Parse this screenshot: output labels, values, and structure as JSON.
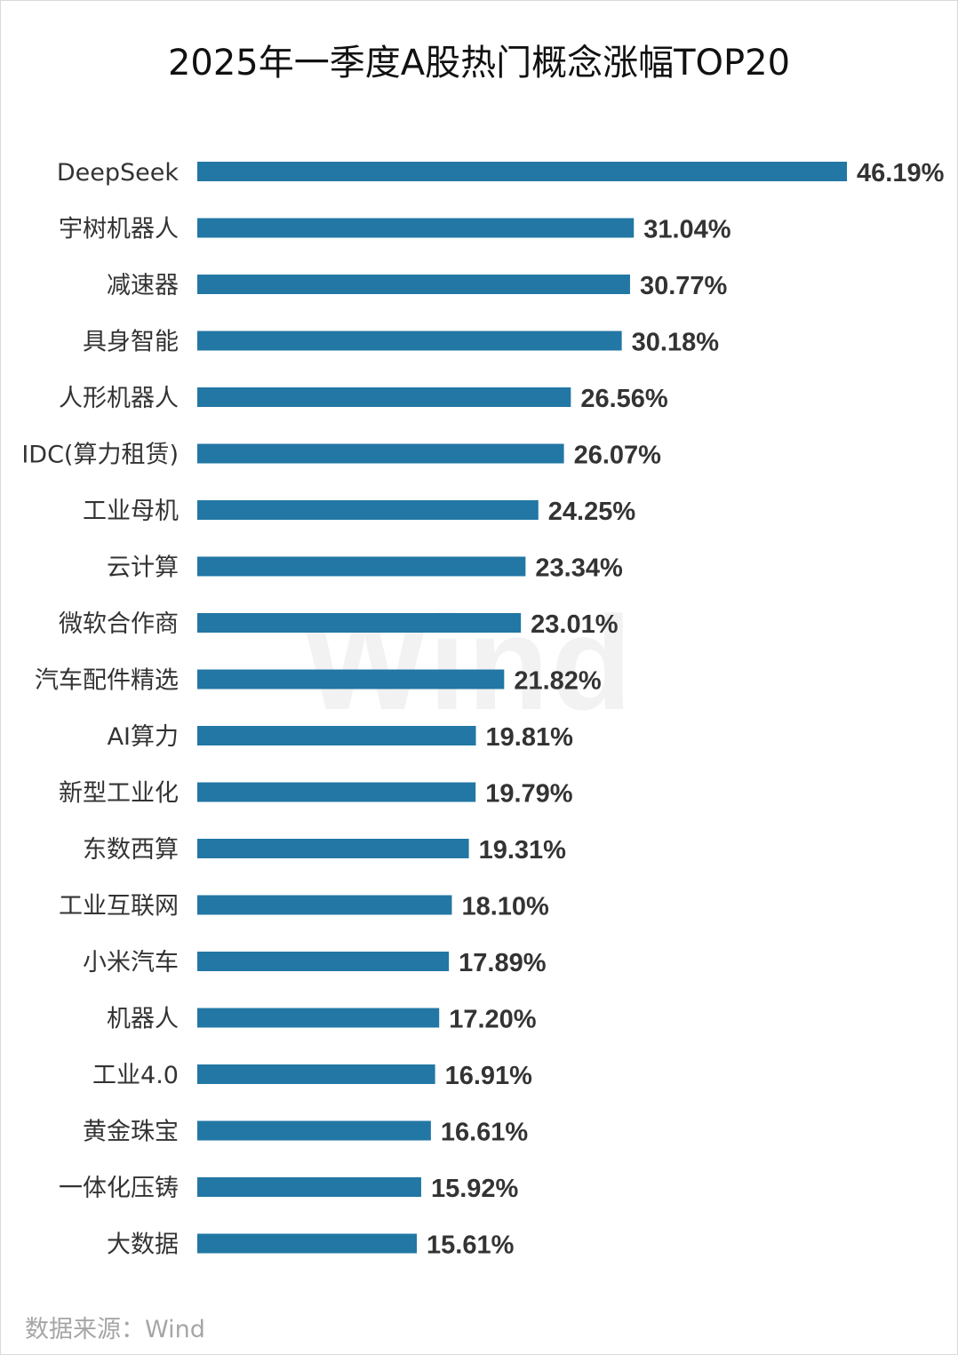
{
  "title": "2025年一季度A股热门概念涨幅TOP20",
  "watermark": "Wind",
  "source": "数据来源：Wind",
  "colors": {
    "bar": "#2277a4",
    "label": "#333333",
    "value": "#333333"
  },
  "chart_data": {
    "type": "bar",
    "orientation": "horizontal",
    "title": "2025年一季度A股热门概念涨幅TOP20",
    "categories": [
      "DeepSeek",
      "宇树机器人",
      "减速器",
      "具身智能",
      "人形机器人",
      "IDC(算力租赁)",
      "工业母机",
      "云计算",
      "微软合作商",
      "汽车配件精选",
      "AI算力",
      "新型工业化",
      "东数西算",
      "工业互联网",
      "小米汽车",
      "机器人",
      "工业4.0",
      "黄金珠宝",
      "一体化压铸",
      "大数据"
    ],
    "values": [
      46.19,
      31.04,
      30.77,
      30.18,
      26.56,
      26.07,
      24.25,
      23.34,
      23.01,
      21.82,
      19.81,
      19.79,
      19.31,
      18.1,
      17.89,
      17.2,
      16.91,
      16.61,
      15.92,
      15.61
    ],
    "value_labels": [
      "46.19%",
      "31.04%",
      "30.77%",
      "30.18%",
      "26.56%",
      "26.07%",
      "24.25%",
      "23.34%",
      "23.01%",
      "21.82%",
      "19.81%",
      "19.79%",
      "19.31%",
      "18.10%",
      "17.89%",
      "17.20%",
      "16.91%",
      "16.61%",
      "15.92%",
      "15.61%"
    ],
    "unit": "%",
    "grid": false,
    "legend": "none"
  }
}
